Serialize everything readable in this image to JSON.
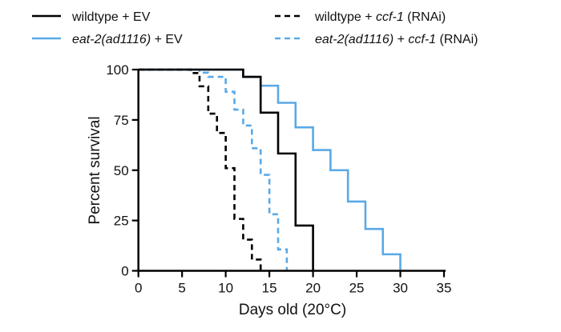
{
  "chart_data": {
    "type": "line",
    "step": true,
    "xlabel": "Days old (20°C)",
    "ylabel": "Percent survival",
    "xlim": [
      0,
      35
    ],
    "ylim": [
      0,
      100
    ],
    "xticks": [
      "0",
      "5",
      "10",
      "15",
      "20",
      "25",
      "30",
      "35"
    ],
    "yticks": [
      "0",
      "25",
      "50",
      "75",
      "100"
    ],
    "grid": false,
    "legend_position": "top",
    "series": [
      {
        "name": "wildtype + EV",
        "name_parts": [
          {
            "text": "wildtype + EV",
            "italic": false
          }
        ],
        "color": "#000000",
        "dashed": false,
        "x": [
          0,
          12,
          14,
          16,
          18,
          20
        ],
        "y": [
          100,
          96.4,
          78.6,
          58.3,
          22.5,
          0
        ]
      },
      {
        "name": "wildtype + ccf-1 (RNAi)",
        "name_parts": [
          {
            "text": "wildtype + ",
            "italic": false
          },
          {
            "text": "ccf-1",
            "italic": true
          },
          {
            "text": " (RNAi)",
            "italic": false
          }
        ],
        "color": "#000000",
        "dashed": true,
        "x": [
          0,
          6,
          7,
          8,
          9,
          10,
          11,
          12,
          13,
          14
        ],
        "y": [
          100,
          98.3,
          91.7,
          78.1,
          68.5,
          51,
          25.8,
          15.5,
          5.6,
          0
        ]
      },
      {
        "name": "eat-2(ad1116) + EV",
        "name_parts": [
          {
            "text": "eat-2(ad1116)",
            "italic": true
          },
          {
            "text": " + EV",
            "italic": false
          }
        ],
        "color": "#5aa9e6",
        "dashed": false,
        "x": [
          0,
          12,
          14,
          16,
          18,
          20,
          22,
          24,
          26,
          28,
          30
        ],
        "y": [
          100,
          96.4,
          92,
          83.5,
          71.3,
          60,
          50,
          34.4,
          20.8,
          8.2,
          0
        ]
      },
      {
        "name": "eat-2(ad1116) + ccf-1 (RNAi)",
        "name_parts": [
          {
            "text": "eat-2(ad1116)",
            "italic": true
          },
          {
            "text": " + ",
            "italic": false
          },
          {
            "text": "ccf-1",
            "italic": true
          },
          {
            "text": " (RNAi)",
            "italic": false
          }
        ],
        "color": "#5aa9e6",
        "dashed": true,
        "x": [
          0,
          7,
          8,
          10,
          11,
          12,
          13,
          14,
          15,
          16,
          17
        ],
        "y": [
          100,
          98.5,
          96.4,
          89,
          80.1,
          72.2,
          60.9,
          47.7,
          28.1,
          10.6,
          0
        ]
      }
    ]
  }
}
